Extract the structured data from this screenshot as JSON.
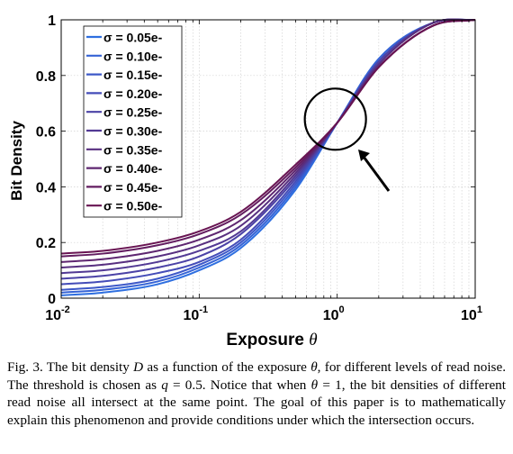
{
  "chart_data": {
    "type": "line",
    "xlabel": "Exposure θ",
    "ylabel": "Bit Density",
    "xscale": "log",
    "xlim": [
      0.01,
      10
    ],
    "ylim": [
      0,
      1
    ],
    "x_ticks": [
      {
        "value": 0.01,
        "base": "10",
        "exp": "-2"
      },
      {
        "value": 0.1,
        "base": "10",
        "exp": "-1"
      },
      {
        "value": 1,
        "base": "10",
        "exp": "0"
      },
      {
        "value": 10,
        "base": "10",
        "exp": "1"
      }
    ],
    "y_ticks": [
      "0",
      "0.2",
      "0.4",
      "0.6",
      "0.8",
      "1"
    ],
    "grid": "log-minor vertical and major horizontal, dotted",
    "legend_position": "top-left",
    "threshold_q": 0.5,
    "x_sample": [
      0.01,
      0.02,
      0.05,
      0.1,
      0.2,
      0.5,
      1,
      2,
      5,
      10
    ],
    "series": [
      {
        "name": "σ = 0.05e-",
        "sigma": 0.05,
        "color": "#2e6fe0",
        "values": [
          0.01,
          0.02,
          0.05,
          0.1,
          0.18,
          0.39,
          0.63,
          0.86,
          0.99,
          1.0
        ]
      },
      {
        "name": "σ = 0.10e-",
        "sigma": 0.1,
        "color": "#3563d6",
        "values": [
          0.02,
          0.03,
          0.06,
          0.11,
          0.19,
          0.4,
          0.63,
          0.86,
          0.99,
          1.0
        ]
      },
      {
        "name": "σ = 0.15e-",
        "sigma": 0.15,
        "color": "#3d58c8",
        "values": [
          0.03,
          0.04,
          0.07,
          0.12,
          0.2,
          0.41,
          0.63,
          0.85,
          0.99,
          1.0
        ]
      },
      {
        "name": "σ = 0.20e-",
        "sigma": 0.2,
        "color": "#444cb8",
        "values": [
          0.05,
          0.06,
          0.09,
          0.13,
          0.21,
          0.42,
          0.63,
          0.85,
          0.99,
          1.0
        ]
      },
      {
        "name": "σ = 0.25e-",
        "sigma": 0.25,
        "color": "#4b42a6",
        "values": [
          0.07,
          0.08,
          0.11,
          0.15,
          0.23,
          0.43,
          0.63,
          0.85,
          0.99,
          1.0
        ]
      },
      {
        "name": "σ = 0.30e-",
        "sigma": 0.3,
        "color": "#523994",
        "values": [
          0.09,
          0.1,
          0.13,
          0.17,
          0.24,
          0.44,
          0.63,
          0.84,
          0.99,
          1.0
        ]
      },
      {
        "name": "σ = 0.35e-",
        "sigma": 0.35,
        "color": "#582f80",
        "values": [
          0.11,
          0.12,
          0.15,
          0.19,
          0.26,
          0.45,
          0.63,
          0.84,
          0.99,
          1.0
        ]
      },
      {
        "name": "σ = 0.40e-",
        "sigma": 0.4,
        "color": "#5e2670",
        "values": [
          0.13,
          0.14,
          0.17,
          0.21,
          0.28,
          0.46,
          0.63,
          0.83,
          0.98,
          1.0
        ]
      },
      {
        "name": "σ = 0.45e-",
        "sigma": 0.45,
        "color": "#631d60",
        "values": [
          0.15,
          0.16,
          0.19,
          0.23,
          0.3,
          0.47,
          0.63,
          0.83,
          0.98,
          1.0
        ]
      },
      {
        "name": "σ = 0.50e-",
        "sigma": 0.5,
        "color": "#681452",
        "values": [
          0.16,
          0.17,
          0.2,
          0.24,
          0.31,
          0.48,
          0.63,
          0.83,
          0.98,
          1.0
        ]
      }
    ],
    "annotation": {
      "type": "circle-with-arrow",
      "x": 1,
      "y": 0.63,
      "meaning": "intersection point"
    }
  },
  "caption": {
    "label": "Fig. 3.",
    "text_parts": [
      {
        "t": " The bit density ",
        "i": false
      },
      {
        "t": "D",
        "i": true
      },
      {
        "t": " as a function of the exposure ",
        "i": false
      },
      {
        "t": "θ",
        "i": true
      },
      {
        "t": ", for different levels of read noise. The threshold is chosen as ",
        "i": false
      },
      {
        "t": "q",
        "i": true
      },
      {
        "t": " = 0.5. Notice that when ",
        "i": false
      },
      {
        "t": "θ",
        "i": true
      },
      {
        "t": " = 1, the bit densities of different read noise all intersect at the same point. The goal of this paper is to mathematically explain this phenomenon and provide conditions under which the intersection occurs.",
        "i": false
      }
    ]
  }
}
